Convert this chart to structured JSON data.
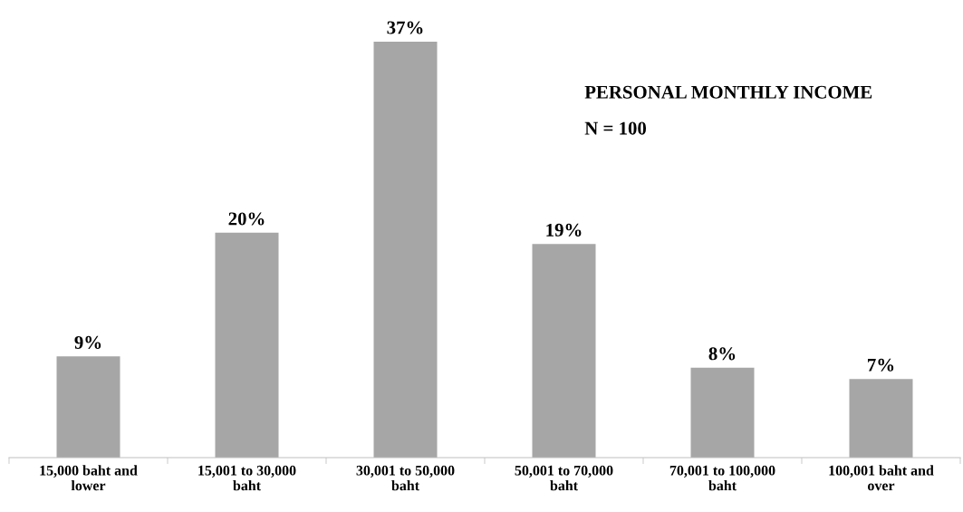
{
  "chart_data": {
    "type": "bar",
    "title": "PERSONAL MONTHLY INCOME",
    "subtitle": "N = 100",
    "categories": [
      "15,000 baht and\nlower",
      "15,001 to 30,000\nbaht",
      "30,001 to 50,000\nbaht",
      "50,001 to 70,000\nbaht",
      "70,001 to 100,000\nbaht",
      "100,001 baht and\nover"
    ],
    "values": [
      9,
      20,
      37,
      19,
      8,
      7
    ],
    "value_labels": [
      "9%",
      "20%",
      "37%",
      "19%",
      "8%",
      "7%"
    ],
    "color": "#a6a6a6",
    "grid": false,
    "legend": false
  }
}
